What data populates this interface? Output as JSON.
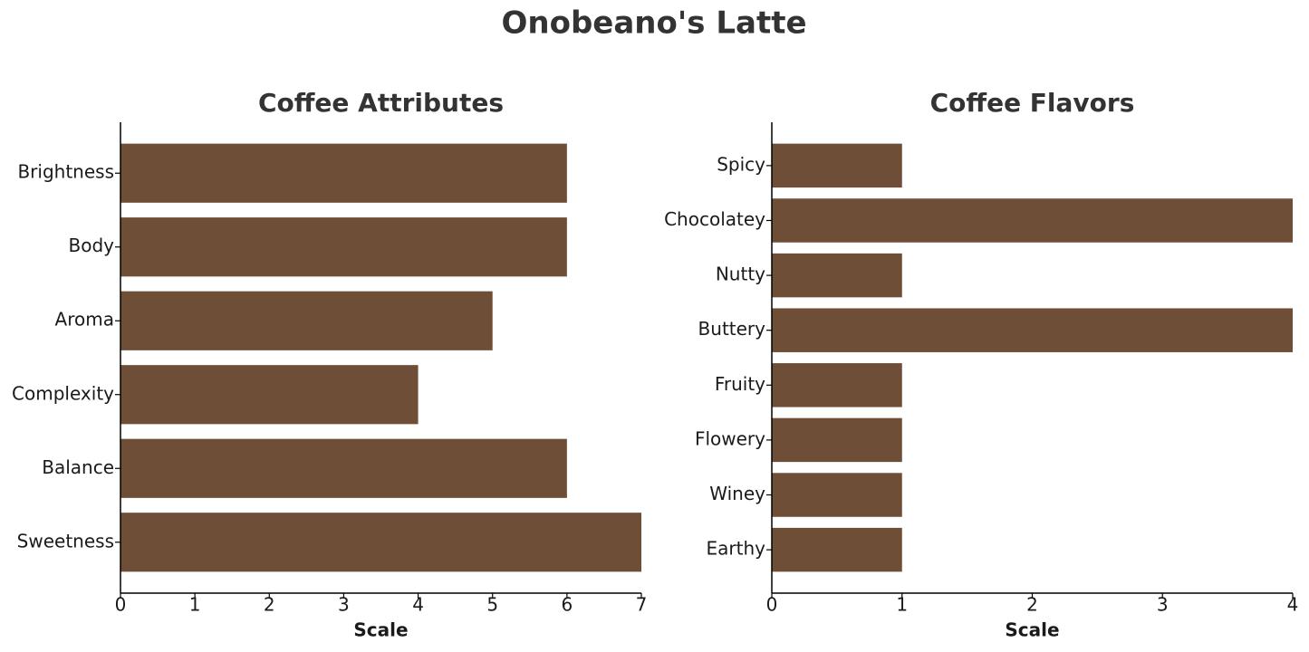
{
  "title": "Onobeano's Latte",
  "chart_data": [
    {
      "type": "barh",
      "title": "Coffee Attributes",
      "xlabel": "Scale",
      "categories": [
        "Brightness",
        "Body",
        "Aroma",
        "Complexity",
        "Balance",
        "Sweetness"
      ],
      "values": [
        6,
        6,
        5,
        4,
        6,
        7
      ],
      "color": "#6f4e37",
      "xlim": [
        0,
        7
      ],
      "xticks": [
        0,
        1,
        2,
        3,
        4,
        5,
        6,
        7
      ],
      "grid": false
    },
    {
      "type": "barh",
      "title": "Coffee Flavors",
      "xlabel": "Scale",
      "categories": [
        "Spicy",
        "Chocolatey",
        "Nutty",
        "Buttery",
        "Fruity",
        "Flowery",
        "Winey",
        "Earthy"
      ],
      "values": [
        1,
        4,
        1,
        4,
        1,
        1,
        1,
        1
      ],
      "color": "#6f4e37",
      "xlim": [
        0,
        4
      ],
      "xticks": [
        0,
        1,
        2,
        3,
        4
      ],
      "grid": false
    }
  ]
}
